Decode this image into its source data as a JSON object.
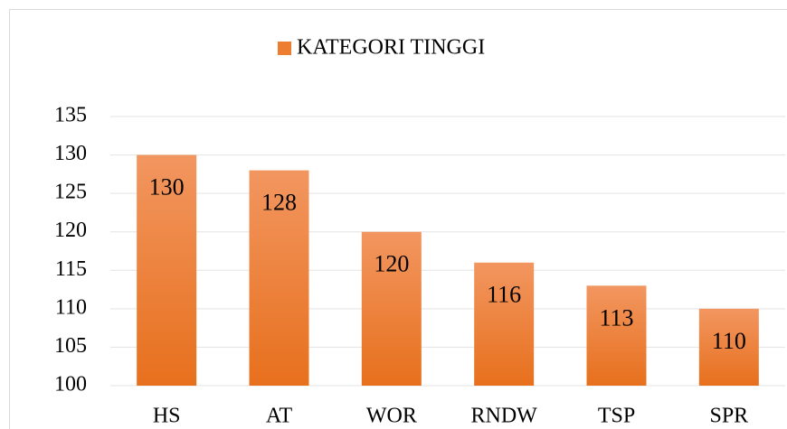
{
  "chart_data": {
    "type": "bar",
    "legend": "KATEGORI TINGGI",
    "categories": [
      "HS",
      "AT",
      "WOR",
      "RNDW",
      "TSP",
      "SPR"
    ],
    "values": [
      130,
      128,
      120,
      116,
      113,
      110
    ],
    "color": "#ed7d31",
    "ylim": [
      100,
      135
    ],
    "yticks": [
      100,
      105,
      110,
      115,
      120,
      125,
      130,
      135
    ],
    "grid": true,
    "legend_position": "top",
    "show_values": true
  }
}
